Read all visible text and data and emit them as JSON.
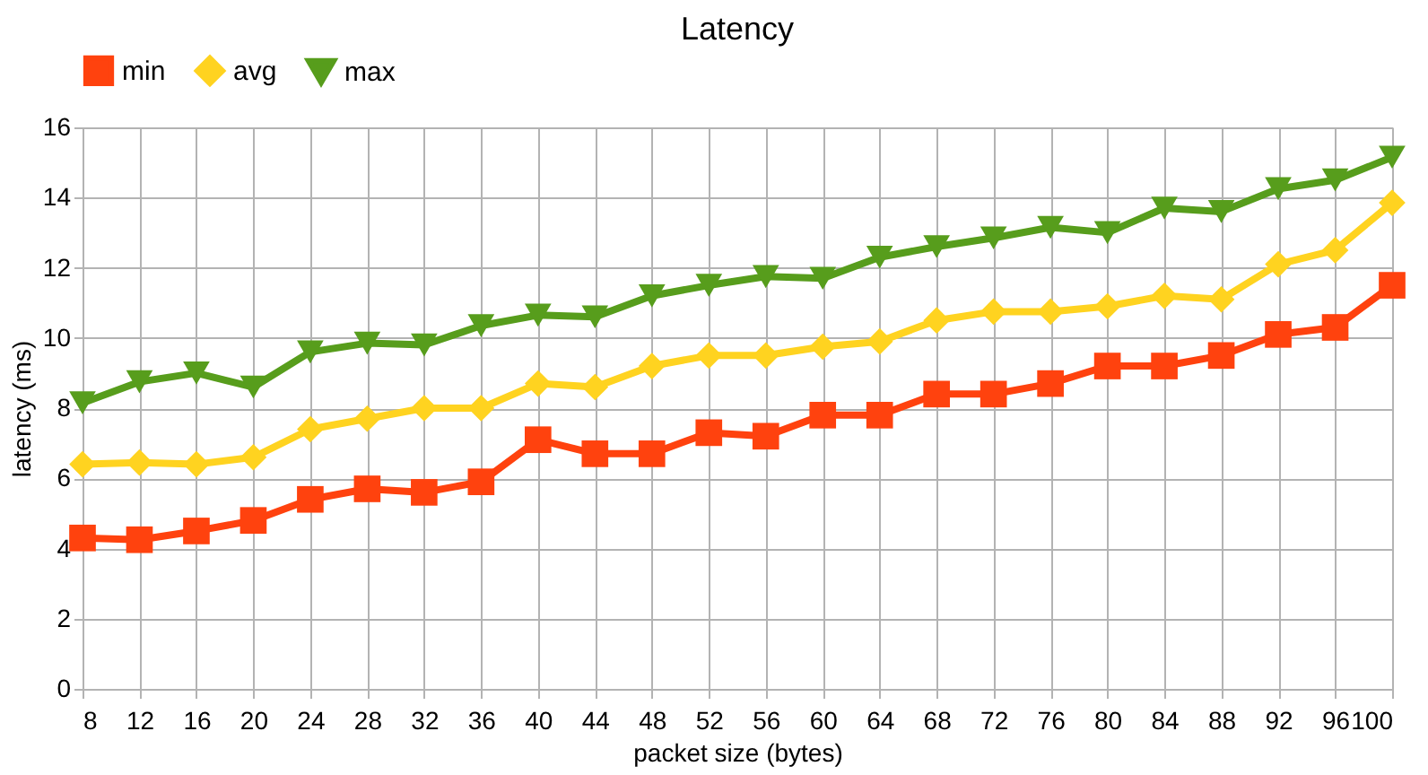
{
  "chart_data": {
    "type": "line",
    "title": "Latency",
    "xlabel": "packet size (bytes)",
    "ylabel": "latency (ms)",
    "categories": [
      "8",
      "12",
      "16",
      "20",
      "24",
      "28",
      "32",
      "36",
      "40",
      "44",
      "48",
      "52",
      "56",
      "60",
      "64",
      "68",
      "72",
      "76",
      "80",
      "84",
      "88",
      "92",
      "96",
      "100"
    ],
    "series": [
      {
        "name": "min",
        "color": "#ff420e",
        "marker": "square",
        "values": [
          4.3,
          4.25,
          4.5,
          4.8,
          5.4,
          5.7,
          5.6,
          5.9,
          7.1,
          6.7,
          6.7,
          7.3,
          7.2,
          7.8,
          7.8,
          8.4,
          8.4,
          8.7,
          9.2,
          9.2,
          9.5,
          10.1,
          10.3,
          11.5
        ]
      },
      {
        "name": "avg",
        "color": "#ffd320",
        "marker": "diamond",
        "values": [
          6.4,
          6.45,
          6.4,
          6.6,
          7.4,
          7.7,
          8.0,
          8.0,
          8.7,
          8.6,
          9.2,
          9.5,
          9.5,
          9.75,
          9.9,
          10.5,
          10.75,
          10.75,
          10.9,
          11.2,
          11.1,
          12.1,
          12.5,
          13.85
        ]
      },
      {
        "name": "max",
        "color": "#579d1c",
        "marker": "triangle",
        "values": [
          8.15,
          8.75,
          9.0,
          8.6,
          9.6,
          9.85,
          9.8,
          10.35,
          10.65,
          10.6,
          11.2,
          11.5,
          11.75,
          11.7,
          12.3,
          12.6,
          12.85,
          13.15,
          13.0,
          13.7,
          13.6,
          14.25,
          14.5,
          15.15
        ]
      }
    ],
    "ylim": [
      0,
      16
    ],
    "yticks": [
      0,
      2,
      4,
      6,
      8,
      10,
      12,
      14,
      16
    ],
    "grid": true,
    "legend": "top",
    "line_style": "solid"
  }
}
